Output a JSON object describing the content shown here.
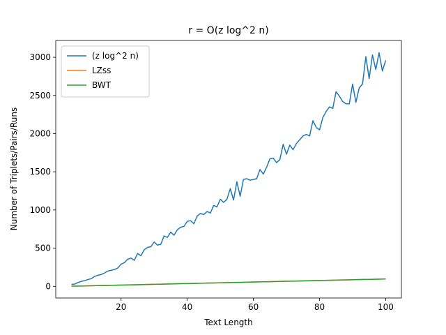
{
  "chart_data": {
    "type": "line",
    "title": "r = O(z log^2 n)",
    "x_label": "Text Length",
    "y_label": "Number of Triplets/Pairs/Runs",
    "x": [
      5,
      6,
      7,
      8,
      9,
      10,
      11,
      12,
      13,
      14,
      15,
      16,
      17,
      18,
      19,
      20,
      21,
      22,
      23,
      24,
      25,
      26,
      27,
      28,
      29,
      30,
      31,
      32,
      33,
      34,
      35,
      36,
      37,
      38,
      39,
      40,
      41,
      42,
      43,
      44,
      45,
      46,
      47,
      48,
      49,
      50,
      51,
      52,
      53,
      54,
      55,
      56,
      57,
      58,
      59,
      60,
      61,
      62,
      63,
      64,
      65,
      66,
      67,
      68,
      69,
      70,
      71,
      72,
      73,
      74,
      75,
      76,
      77,
      78,
      79,
      80,
      81,
      82,
      83,
      84,
      85,
      86,
      87,
      88,
      89,
      90,
      91,
      92,
      93,
      94,
      95,
      96,
      97,
      98,
      99,
      100
    ],
    "series": [
      {
        "name": "(z log^2 n)",
        "color": "#1f77b4",
        "values": [
          25,
          30,
          50,
          65,
          75,
          90,
          100,
          130,
          145,
          155,
          175,
          200,
          210,
          220,
          240,
          290,
          310,
          355,
          370,
          340,
          430,
          400,
          480,
          510,
          520,
          580,
          540,
          550,
          660,
          640,
          710,
          670,
          740,
          775,
          785,
          850,
          860,
          820,
          920,
          955,
          940,
          980,
          960,
          1060,
          1040,
          1140,
          1100,
          1140,
          1280,
          1130,
          1370,
          1180,
          1400,
          1410,
          1390,
          1400,
          1410,
          1530,
          1470,
          1560,
          1670,
          1680,
          1620,
          1660,
          1860,
          1730,
          1850,
          1790,
          1870,
          1920,
          1970,
          1990,
          1970,
          2170,
          2080,
          2050,
          2210,
          2290,
          2350,
          2330,
          2550,
          2490,
          2420,
          2390,
          2390,
          2650,
          2410,
          2600,
          2650,
          3010,
          2720,
          3030,
          2840,
          3060,
          2820,
          2960
        ]
      },
      {
        "name": "LZss",
        "color": "#ff7f0e",
        "values": [
          2,
          3,
          4,
          5,
          6,
          7,
          8,
          9,
          10,
          11,
          12,
          13,
          14,
          15,
          16,
          17,
          18,
          19,
          20,
          21,
          22,
          23,
          24,
          25,
          26,
          27,
          28,
          29,
          30,
          31,
          32,
          33,
          34,
          35,
          36,
          37,
          38,
          39,
          40,
          41,
          42,
          43,
          44,
          45,
          46,
          47,
          48,
          49,
          50,
          51,
          52,
          53,
          54,
          55,
          56,
          57,
          58,
          59,
          60,
          61,
          62,
          63,
          64,
          65,
          66,
          67,
          68,
          69,
          70,
          71,
          72,
          73,
          74,
          75,
          76,
          77,
          78,
          79,
          80,
          81,
          82,
          83,
          84,
          85,
          86,
          87,
          88,
          89,
          90,
          91,
          92,
          93,
          94,
          95,
          96,
          97
        ]
      },
      {
        "name": "BWT",
        "color": "#2ca02c",
        "values": [
          1,
          2,
          3,
          4,
          5,
          6,
          7,
          8,
          9,
          10,
          11,
          12,
          13,
          14,
          15,
          16,
          17,
          18,
          19,
          20,
          21,
          22,
          23,
          24,
          25,
          26,
          27,
          28,
          29,
          30,
          31,
          32,
          33,
          34,
          35,
          36,
          37,
          38,
          39,
          40,
          41,
          42,
          43,
          44,
          45,
          46,
          47,
          48,
          49,
          50,
          51,
          52,
          53,
          54,
          55,
          56,
          57,
          58,
          59,
          60,
          61,
          62,
          63,
          64,
          65,
          66,
          67,
          68,
          69,
          70,
          71,
          72,
          73,
          74,
          75,
          76,
          77,
          78,
          79,
          80,
          81,
          82,
          83,
          84,
          85,
          86,
          87,
          88,
          89,
          90,
          91,
          92,
          93,
          94,
          95,
          96
        ]
      }
    ],
    "xlim": [
      0.25,
      104.75
    ],
    "ylim": [
      -153,
      3220
    ],
    "xticks": [
      20,
      40,
      60,
      80,
      100
    ],
    "yticks": [
      0,
      500,
      1000,
      1500,
      2000,
      2500,
      3000
    ],
    "legend": "upper left",
    "grid": false
  }
}
